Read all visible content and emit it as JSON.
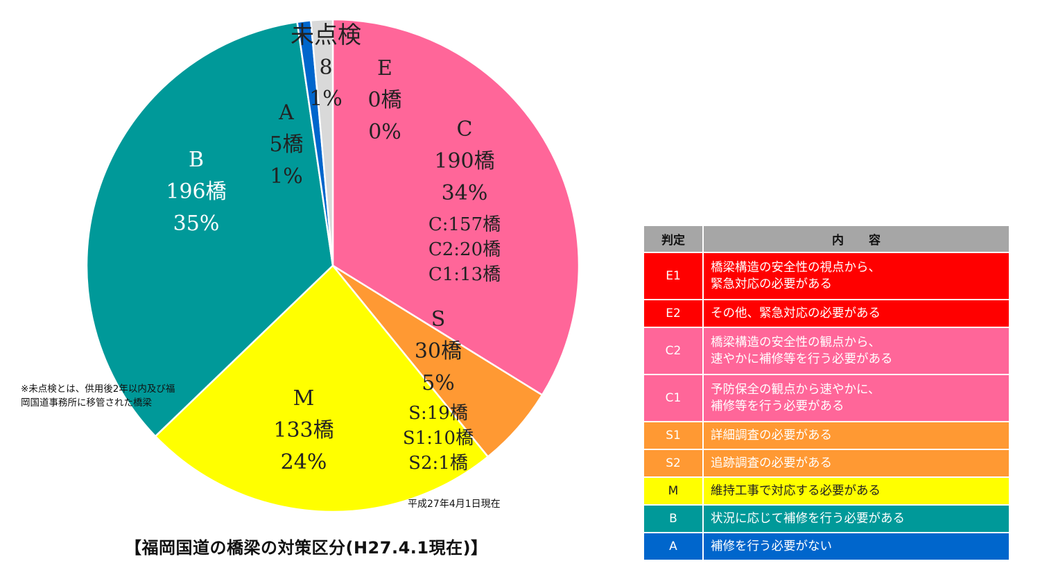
{
  "chart_data": {
    "type": "pie",
    "title": "【福岡国道の橋梁の対策区分(H27.4.1現在)】",
    "as_of": "平成27年4月1日現在",
    "note": "※未点検とは、供用後2年以内及び福岡国道事務所に移管された橋梁",
    "slices": [
      {
        "key": "E",
        "name": "E",
        "count_label": "0橋",
        "value": 0,
        "percent_label": "0%",
        "color": "#ff6699",
        "sub": []
      },
      {
        "key": "C",
        "name": "C",
        "count_label": "190橋",
        "value": 190,
        "percent_label": "34%",
        "color": "#ff6699",
        "sub": [
          "C:157橋",
          "C2:20橋",
          "C1:13橋"
        ]
      },
      {
        "key": "S",
        "name": "S",
        "count_label": "30橋",
        "value": 30,
        "percent_label": "5%",
        "color": "#ff9933",
        "sub": [
          "S:19橋",
          "S1:10橋",
          "S2:1橋"
        ]
      },
      {
        "key": "M",
        "name": "M",
        "count_label": "133橋",
        "value": 133,
        "percent_label": "24%",
        "color": "#ffff00",
        "sub": []
      },
      {
        "key": "B",
        "name": "B",
        "count_label": "196橋",
        "value": 196,
        "percent_label": "35%",
        "color": "#009999",
        "sub": []
      },
      {
        "key": "A",
        "name": "A",
        "count_label": "5橋",
        "value": 5,
        "percent_label": "1%",
        "color": "#0066cc",
        "sub": []
      },
      {
        "key": "U",
        "name": "未点検",
        "count_label": "8",
        "value": 8,
        "percent_label": "1%",
        "color": "#d9d9d9",
        "sub": []
      }
    ]
  },
  "legend": {
    "header": {
      "code": "判定",
      "content": "内容"
    },
    "rows": [
      {
        "code": "E1",
        "lines": [
          "橋梁構造の安全性の視点から、",
          "緊急対応の必要がある"
        ],
        "color": "#ff0000"
      },
      {
        "code": "E2",
        "lines": [
          "その他、緊急対応の必要がある"
        ],
        "color": "#ff0000"
      },
      {
        "code": "C2",
        "lines": [
          "橋梁構造の安全性の観点から、",
          "速やかに補修等を行う必要がある"
        ],
        "color": "#ff6699"
      },
      {
        "code": "C1",
        "lines": [
          "予防保全の観点から速やかに、",
          "補修等を行う必要がある"
        ],
        "color": "#ff6699"
      },
      {
        "code": "S1",
        "lines": [
          "詳細調査の必要がある"
        ],
        "color": "#ff9933"
      },
      {
        "code": "S2",
        "lines": [
          "追跡調査の必要がある"
        ],
        "color": "#ff9933"
      },
      {
        "code": "M",
        "lines": [
          "維持工事で対応する必要がある"
        ],
        "color": "#ffff00"
      },
      {
        "code": "B",
        "lines": [
          "状況に応じて補修を行う必要がある"
        ],
        "color": "#009999"
      },
      {
        "code": "A",
        "lines": [
          "補修を行う必要がない"
        ],
        "color": "#0066cc"
      }
    ]
  }
}
